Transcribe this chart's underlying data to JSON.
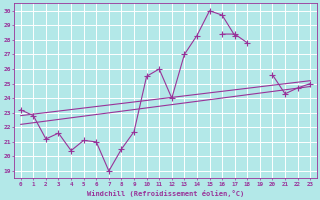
{
  "xlabel": "Windchill (Refroidissement éolien,°C)",
  "background_color": "#b3e8e8",
  "line_color": "#993399",
  "grid_color": "#ffffff",
  "xlim": [
    -0.5,
    23.5
  ],
  "ylim": [
    18.5,
    30.5
  ],
  "xticks": [
    0,
    1,
    2,
    3,
    4,
    5,
    6,
    7,
    8,
    9,
    10,
    11,
    12,
    13,
    14,
    15,
    16,
    17,
    18,
    19,
    20,
    21,
    22,
    23
  ],
  "yticks": [
    19,
    20,
    21,
    22,
    23,
    24,
    25,
    26,
    27,
    28,
    29,
    30
  ],
  "series1_x": [
    0,
    1,
    2,
    3,
    4,
    5,
    6,
    7,
    8,
    9,
    10,
    11,
    12,
    13,
    14,
    15,
    16,
    17,
    18,
    19,
    20,
    21,
    22,
    23
  ],
  "series1_y": [
    23.2,
    22.8,
    21.2,
    21.6,
    20.4,
    21.1,
    21.0,
    19.0,
    20.5,
    21.7,
    25.5,
    26.0,
    24.0,
    27.0,
    28.3,
    30.0,
    29.7,
    28.3,
    null,
    null,
    null,
    null,
    null,
    null
  ],
  "series2_x": [
    0,
    1,
    2,
    3,
    4,
    5,
    6,
    7,
    8,
    9,
    10,
    11,
    12,
    13,
    14,
    15,
    16,
    17,
    18,
    19,
    20,
    21,
    22,
    23
  ],
  "series2_y": [
    null,
    null,
    null,
    null,
    null,
    null,
    null,
    null,
    null,
    null,
    null,
    null,
    null,
    null,
    null,
    null,
    28.4,
    28.4,
    27.8,
    null,
    25.6,
    24.3,
    24.7,
    25.0
  ],
  "line1_x": [
    0,
    23
  ],
  "line1_y": [
    22.8,
    25.2
  ],
  "line2_x": [
    0,
    23
  ],
  "line2_y": [
    22.2,
    24.8
  ],
  "figsize": [
    3.2,
    2.0
  ],
  "dpi": 100
}
